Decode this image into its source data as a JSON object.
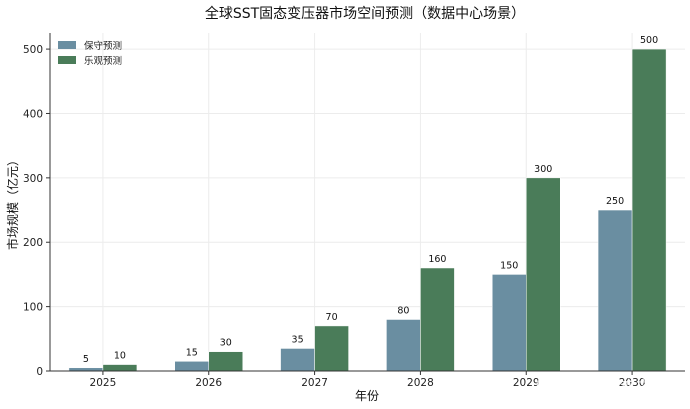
{
  "chart_data": {
    "type": "bar",
    "title": "全球SST固态变压器市场空间预测（数据中心场景）",
    "xlabel": "年份",
    "ylabel": "市场规模（亿元）",
    "categories": [
      "2025",
      "2026",
      "2027",
      "2028",
      "2029",
      "2030"
    ],
    "series": [
      {
        "name": "保守预测",
        "color": "#6a8ea1",
        "values": [
          5,
          15,
          35,
          80,
          150,
          250
        ]
      },
      {
        "name": "乐观预测",
        "color": "#4a7c59",
        "values": [
          10,
          30,
          70,
          160,
          300,
          500
        ]
      }
    ],
    "ylim": [
      0,
      525
    ],
    "yticks": [
      0,
      100,
      200,
      300,
      400,
      500
    ],
    "grid": true,
    "legend_position": "top-left"
  },
  "watermark": {
    "source": "搜狐号",
    "author": "@证券之星"
  }
}
